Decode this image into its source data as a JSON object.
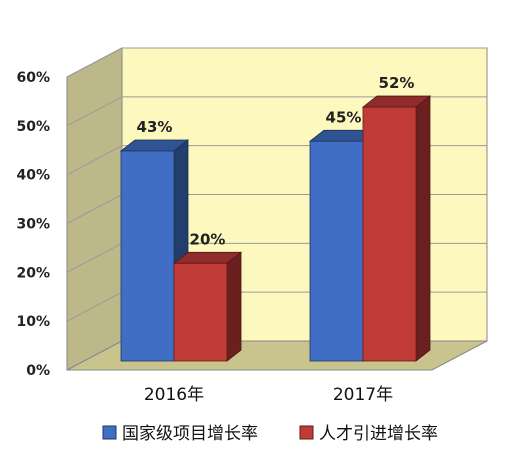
{
  "chart_data": {
    "type": "bar",
    "categories": [
      "2016年",
      "2017年"
    ],
    "series": [
      {
        "name": "国家级项目增长率",
        "values": [
          43,
          45
        ],
        "color": "#3F6EC4"
      },
      {
        "name": "人才引进增长率",
        "values": [
          20,
          52
        ],
        "color": "#C03A36"
      }
    ],
    "data_labels": [
      [
        "43%",
        "45%"
      ],
      [
        "20%",
        "52%"
      ]
    ],
    "y_ticks": [
      "0%",
      "10%",
      "20%",
      "30%",
      "40%",
      "50%",
      "60%"
    ],
    "ylim": [
      0,
      60
    ],
    "wall_color": "#FCF8BE",
    "floor_color": "#C9C48E",
    "side_wall_color": "#BDB88A",
    "grid": true,
    "legend_position": "bottom"
  }
}
